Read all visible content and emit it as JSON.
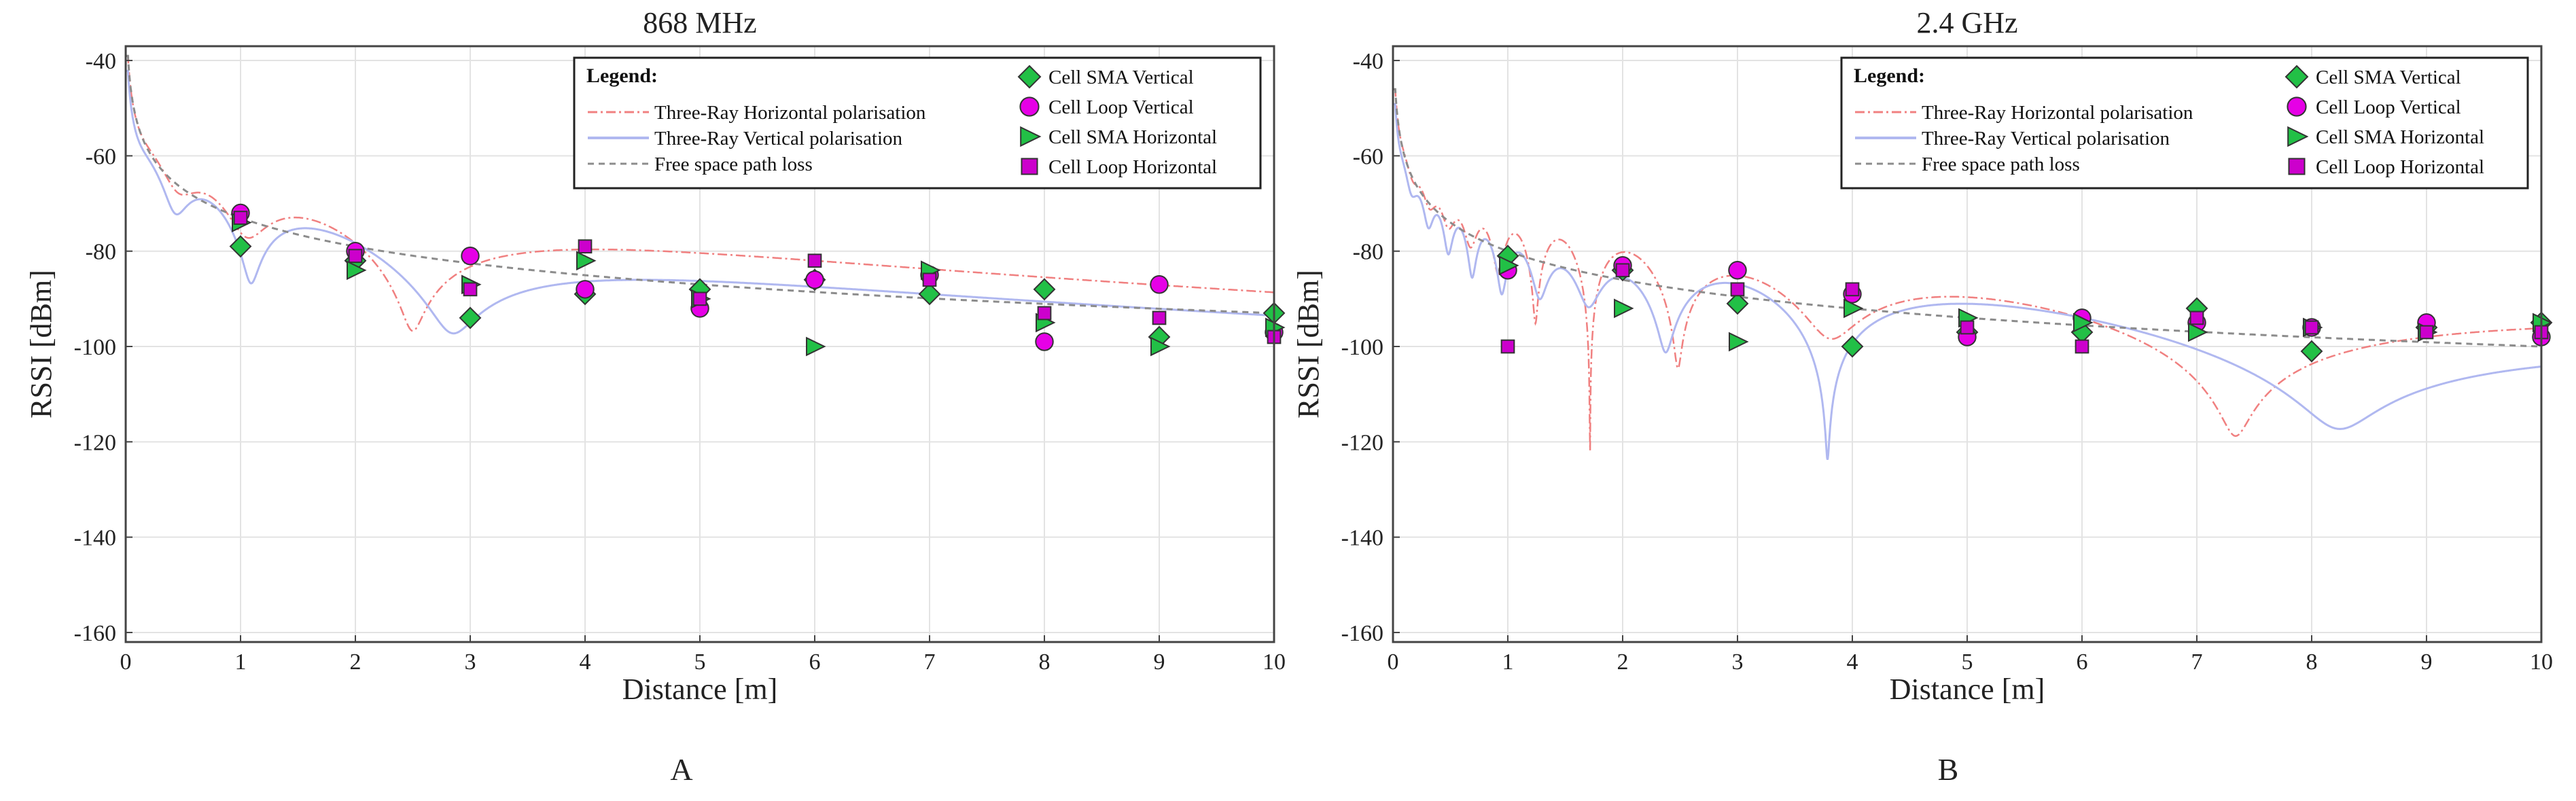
{
  "figure": {
    "panel_labels": [
      "A",
      "B"
    ]
  },
  "chart_data": [
    {
      "type": "line+scatter",
      "title": "868 MHz",
      "xlabel": "Distance  [m]",
      "ylabel": "RSSI  [dBm]",
      "xlim": [
        0,
        10
      ],
      "ylim": [
        -162,
        -37
      ],
      "xticks": [
        0,
        1,
        2,
        3,
        4,
        5,
        6,
        7,
        8,
        9,
        10
      ],
      "yticks": [
        -40,
        -60,
        -80,
        -100,
        -120,
        -140,
        -160
      ],
      "grid": true,
      "legend": {
        "title": "Legend:",
        "position": "top-right",
        "line_entries": [
          "Three-Ray Horizontal polarisation",
          "Three-Ray Vertical polarisation",
          "Free space path loss"
        ],
        "marker_entries": [
          "Cell SMA Vertical",
          "Cell Loop Vertical",
          "Cell SMA Horizontal",
          "Cell Loop Horizontal"
        ]
      },
      "model": {
        "frequency_mhz": 868,
        "fspl_ref_dbm": -73,
        "fspl_ref_distance_m": 1
      },
      "series": [
        {
          "name": "Three-Ray Horizontal polarisation",
          "kind": "line",
          "color": "#f08080",
          "style": "dashdot"
        },
        {
          "name": "Three-Ray Vertical polarisation",
          "kind": "line",
          "color": "#b0b8f0",
          "style": "solid"
        },
        {
          "name": "Free space path loss",
          "kind": "line",
          "color": "#8c8c8c",
          "style": "dashed"
        },
        {
          "name": "Cell SMA Vertical",
          "kind": "scatter",
          "marker": "diamond",
          "color": "#22c046",
          "x": [
            1,
            2,
            3,
            4,
            5,
            6,
            7,
            8,
            9,
            10
          ],
          "y": [
            -79,
            -82,
            -94,
            -89,
            -88,
            -86,
            -89,
            -88,
            -98,
            -93
          ]
        },
        {
          "name": "Cell Loop Vertical",
          "kind": "scatter",
          "marker": "circle",
          "color": "#e600e6",
          "x": [
            1,
            2,
            3,
            4,
            5,
            6,
            7,
            8,
            9,
            10
          ],
          "y": [
            -72,
            -80,
            -81,
            -88,
            -92,
            -86,
            -85,
            -99,
            -87,
            -97
          ]
        },
        {
          "name": "Cell SMA Horizontal",
          "kind": "scatter",
          "marker": "triangle-right",
          "color": "#22c046",
          "x": [
            1,
            2,
            3,
            4,
            5,
            6,
            7,
            8,
            9,
            10
          ],
          "y": [
            -74,
            -84,
            -87,
            -82,
            -90,
            -100,
            -84,
            -95,
            -100,
            -96
          ]
        },
        {
          "name": "Cell Loop Horizontal",
          "kind": "scatter",
          "marker": "square",
          "color": "#cc00cc",
          "x": [
            1,
            2,
            3,
            4,
            5,
            6,
            7,
            8,
            9,
            10
          ],
          "y": [
            -73,
            -81,
            -88,
            -79,
            -90,
            -82,
            -86,
            -93,
            -94,
            -98
          ]
        }
      ]
    },
    {
      "type": "line+scatter",
      "title": "2.4 GHz",
      "xlabel": "Distance  [m]",
      "ylabel": "RSSI  [dBm]",
      "xlim": [
        0,
        10
      ],
      "ylim": [
        -162,
        -37
      ],
      "xticks": [
        0,
        1,
        2,
        3,
        4,
        5,
        6,
        7,
        8,
        9,
        10
      ],
      "yticks": [
        -40,
        -60,
        -80,
        -100,
        -120,
        -140,
        -160
      ],
      "grid": true,
      "legend": {
        "title": "Legend:",
        "position": "top-right",
        "line_entries": [
          "Three-Ray Horizontal polarisation",
          "Three-Ray Vertical polarisation",
          "Free space path loss"
        ],
        "marker_entries": [
          "Cell SMA Vertical",
          "Cell Loop Vertical",
          "Cell SMA Horizontal",
          "Cell Loop Horizontal"
        ]
      },
      "model": {
        "frequency_mhz": 2400,
        "fspl_ref_dbm": -80,
        "fspl_ref_distance_m": 1
      },
      "series": [
        {
          "name": "Three-Ray Horizontal polarisation",
          "kind": "line",
          "color": "#f08080",
          "style": "dashdot"
        },
        {
          "name": "Three-Ray Vertical polarisation",
          "kind": "line",
          "color": "#b0b8f0",
          "style": "solid"
        },
        {
          "name": "Free space path loss",
          "kind": "line",
          "color": "#8c8c8c",
          "style": "dashed"
        },
        {
          "name": "Cell SMA Vertical",
          "kind": "scatter",
          "marker": "diamond",
          "color": "#22c046",
          "x": [
            1,
            2,
            3,
            4,
            5,
            6,
            7,
            8,
            9,
            10
          ],
          "y": [
            -81,
            -84,
            -91,
            -100,
            -97,
            -97,
            -92,
            -101,
            -96,
            -95
          ]
        },
        {
          "name": "Cell Loop Vertical",
          "kind": "scatter",
          "marker": "circle",
          "color": "#e600e6",
          "x": [
            1,
            2,
            3,
            4,
            5,
            6,
            7,
            8,
            9,
            10
          ],
          "y": [
            -84,
            -83,
            -84,
            -89,
            -98,
            -94,
            -95,
            -96,
            -95,
            -98
          ]
        },
        {
          "name": "Cell SMA Horizontal",
          "kind": "scatter",
          "marker": "triangle-right",
          "color": "#22c046",
          "x": [
            1,
            2,
            3,
            4,
            5,
            6,
            7,
            8,
            9,
            10
          ],
          "y": [
            -83,
            -92,
            -99,
            -92,
            -94,
            -95,
            -97,
            -96,
            -97,
            -95
          ]
        },
        {
          "name": "Cell Loop Horizontal",
          "kind": "scatter",
          "marker": "square",
          "color": "#cc00cc",
          "x": [
            1,
            2,
            3,
            4,
            5,
            6,
            7,
            8,
            9,
            10
          ],
          "y": [
            -100,
            -84,
            -88,
            -88,
            -96,
            -100,
            -94,
            -96,
            -97,
            -97
          ]
        }
      ]
    }
  ]
}
